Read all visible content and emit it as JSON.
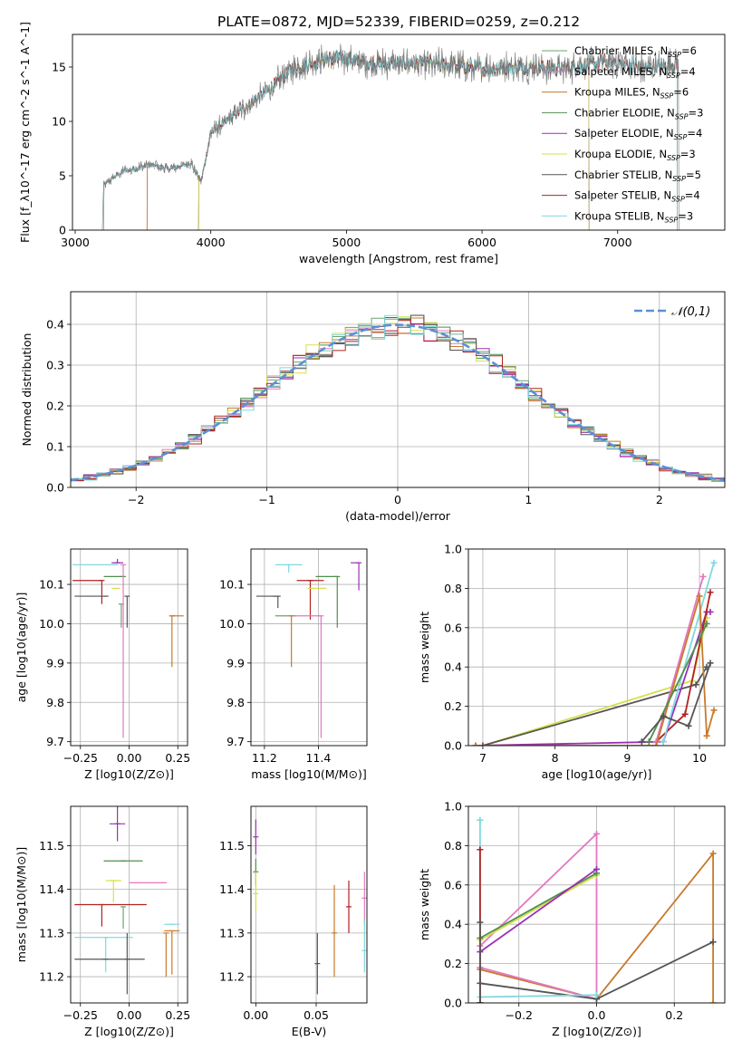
{
  "figure_title": "PLATE=0872, MJD=52339, FIBERID=0259, z=0.212",
  "colors": {
    "chabrier_miles": "#6aa56e",
    "salpeter_miles": "#e377c2",
    "kroupa_miles": "#c87a2a",
    "chabrier_elodie": "#4e8f4e",
    "salpeter_elodie": "#9b30b5",
    "kroupa_elodie": "#d6e04a",
    "chabrier_stelib": "#555555",
    "salpeter_stelib": "#b22222",
    "kroupa_stelib": "#7fd8e0",
    "gauss": "#5b8fd8",
    "grid": "#b0b0b0"
  },
  "chart_data": [
    {
      "type": "line",
      "id": "spectrum",
      "xlabel": "wavelength [Angstrom, rest frame]",
      "ylabel": "Flux [f_λ10^-17 erg cm^-2 s^-1 A^-1]",
      "xlim": [
        2980,
        7790
      ],
      "ylim": [
        0,
        18
      ],
      "xticks": [
        "3000",
        "4000",
        "5000",
        "6000",
        "7000"
      ],
      "yticks": [
        "0",
        "5",
        "10",
        "15"
      ],
      "grid": false,
      "legend_position": "top-right",
      "continuum": [
        [
          3200,
          0
        ],
        [
          3210,
          4.2
        ],
        [
          3350,
          5.4
        ],
        [
          3550,
          6.0
        ],
        [
          3700,
          5.6
        ],
        [
          3850,
          6.2
        ],
        [
          3930,
          4.5
        ],
        [
          4000,
          9.0
        ],
        [
          4200,
          10.8
        ],
        [
          4400,
          12.6
        ],
        [
          4600,
          14.8
        ],
        [
          4800,
          15.6
        ],
        [
          5000,
          15.8
        ],
        [
          5200,
          15.3
        ],
        [
          5500,
          15.4
        ],
        [
          5800,
          15.2
        ],
        [
          6000,
          14.8
        ],
        [
          6300,
          15.1
        ],
        [
          6600,
          14.8
        ],
        [
          6900,
          15.5
        ],
        [
          7200,
          15.0
        ],
        [
          7450,
          15.2
        ]
      ],
      "spectrum_note": "",
      "series": [
        {
          "name": "Chabrier MILES, N_SSP=6",
          "start": 3210,
          "end": 7440
        },
        {
          "name": "Salpeter MILES, N_SSP=4",
          "start": 3530,
          "end": 7440
        },
        {
          "name": "Kroupa MILES, N_SSP=6",
          "start": 3530,
          "end": 7440
        },
        {
          "name": "Chabrier ELODIE, N_SSP=3",
          "start": 3910,
          "end": 6790
        },
        {
          "name": "Salpeter ELODIE, N_SSP=4",
          "start": 3910,
          "end": 6790
        },
        {
          "name": "Kroupa ELODIE, N_SSP=3",
          "start": 3910,
          "end": 6790
        },
        {
          "name": "Chabrier STELIB, N_SSP=5",
          "start": 3210,
          "end": 7440
        },
        {
          "name": "Salpeter STELIB, N_SSP=4",
          "start": 3210,
          "end": 7440
        },
        {
          "name": "Kroupa STELIB, N_SSP=3",
          "start": 3210,
          "end": 7440
        }
      ]
    },
    {
      "type": "histogram",
      "id": "residuals",
      "xlabel": "(data-model)/error",
      "ylabel": "Normed distribution",
      "xlim": [
        -2.5,
        2.5
      ],
      "ylim": [
        0,
        0.48
      ],
      "xticks": [
        "−2",
        "−1",
        "0",
        "1",
        "2"
      ],
      "yticks": [
        "0.0",
        "0.1",
        "0.2",
        "0.3",
        "0.4"
      ],
      "grid": true,
      "legend_position": "top-right",
      "legend": "𝒩(0,1)",
      "bin_width": 0.1,
      "profile": "normal(0,1)"
    },
    {
      "type": "scatter",
      "id": "age_vs_Z",
      "xlabel": "Z [log10(Z/Z⊙)]",
      "ylabel": "age [log10(age/yr)]",
      "xlim": [
        -0.3,
        0.3
      ],
      "ylim": [
        9.69,
        10.19
      ],
      "xticks": [
        "−0.25",
        "0.00",
        "0.25"
      ],
      "yticks": [
        "9.7",
        "9.8",
        "9.9",
        "10.0",
        "10.1"
      ],
      "grid": true,
      "points": [
        {
          "c": "kroupa_stelib",
          "x": -0.07,
          "y": 10.15,
          "xe": [
            0.22,
            0.0
          ],
          "ye": [
            0.0,
            0.0
          ]
        },
        {
          "c": "salpeter_elodie",
          "x": -0.06,
          "y": 10.155,
          "xe": [
            0.03,
            0.03
          ],
          "ye": [
            0.0,
            0.01
          ]
        },
        {
          "c": "chabrier_elodie",
          "x": -0.03,
          "y": 10.12,
          "xe": [
            0.1,
            0.0
          ],
          "ye": [
            0.0,
            0.0
          ]
        },
        {
          "c": "salpeter_stelib",
          "x": -0.14,
          "y": 10.11,
          "xe": [
            0.15,
            0.0
          ],
          "ye": [
            0.06,
            0.0
          ]
        },
        {
          "c": "kroupa_elodie",
          "x": -0.06,
          "y": 10.09,
          "xe": [
            0.03,
            0.0
          ],
          "ye": [
            0.0,
            0.0
          ]
        },
        {
          "c": "chabrier_stelib",
          "x": -0.12,
          "y": 10.07,
          "xe": [
            0.16,
            0.0
          ],
          "ye": [
            0.0,
            0.0
          ]
        },
        {
          "c": "chabrier_miles",
          "x": -0.04,
          "y": 10.05,
          "xe": [
            0.0,
            0.0
          ],
          "ye": [
            0.06,
            0.0
          ]
        },
        {
          "c": "salpeter_miles",
          "x": 0.22,
          "y": 10.02,
          "xe": [
            0.0,
            0.0
          ],
          "ye": [
            0.0,
            0.0
          ]
        },
        {
          "c": "kroupa_miles",
          "x": 0.22,
          "y": 10.02,
          "xe": [
            0.0,
            0.06
          ],
          "ye": [
            0.13,
            0.0
          ]
        },
        {
          "c": "salpeter_miles",
          "x": -0.03,
          "y": 10.15,
          "xe": [
            0.0,
            0.0
          ],
          "ye": [
            0.44,
            0.0
          ]
        },
        {
          "c": "chabrier_stelib",
          "x": -0.01,
          "y": 10.07,
          "xe": [
            0.0,
            0.0
          ],
          "ye": [
            0.08,
            0.0
          ]
        }
      ]
    },
    {
      "type": "scatter",
      "id": "age_vs_mass",
      "xlabel": "mass [log10(M/M⊙)]",
      "ylabel": "",
      "xlim": [
        11.15,
        11.58
      ],
      "ylim": [
        9.69,
        10.19
      ],
      "xticks": [
        "11.2",
        "11.4"
      ],
      "yticks": [
        "9.7",
        "9.8",
        "9.9",
        "10.0",
        "10.1"
      ],
      "grid": true,
      "points": [
        {
          "c": "kroupa_stelib",
          "x": 11.29,
          "y": 10.15,
          "xe": [
            0.05,
            0.05
          ],
          "ye": [
            0.02,
            0.0
          ]
        },
        {
          "c": "salpeter_elodie",
          "x": 11.55,
          "y": 10.155,
          "xe": [
            0.03,
            0.0
          ],
          "ye": [
            0.07,
            0.0
          ]
        },
        {
          "c": "chabrier_elodie",
          "x": 11.47,
          "y": 10.12,
          "xe": [
            0.08,
            0.0
          ],
          "ye": [
            0.13,
            0.0
          ]
        },
        {
          "c": "salpeter_stelib",
          "x": 11.37,
          "y": 10.11,
          "xe": [
            0.05,
            0.05
          ],
          "ye": [
            0.1,
            0.0
          ]
        },
        {
          "c": "kroupa_elodie",
          "x": 11.42,
          "y": 10.09,
          "xe": [
            0.06,
            0.0
          ],
          "ye": [
            0.0,
            0.0
          ]
        },
        {
          "c": "chabrier_stelib",
          "x": 11.24,
          "y": 10.07,
          "xe": [
            0.07,
            0.0
          ],
          "ye": [
            0.0,
            0.0
          ]
        },
        {
          "c": "chabrier_miles",
          "x": 11.31,
          "y": 10.02,
          "xe": [
            0.07,
            0.0
          ],
          "ye": [
            0.0,
            0.0
          ]
        },
        {
          "c": "salpeter_miles",
          "x": 11.41,
          "y": 10.02,
          "xe": [
            0.1,
            0.0
          ],
          "ye": [
            0.31,
            0.0
          ]
        },
        {
          "c": "kroupa_miles",
          "x": 11.3,
          "y": 10.02,
          "xe": [
            0.0,
            0.0
          ],
          "ye": [
            0.13,
            0.0
          ]
        },
        {
          "c": "chabrier_stelib",
          "x": 11.25,
          "y": 10.07,
          "xe": [
            0.0,
            0.0
          ],
          "ye": [
            0.03,
            0.0
          ]
        }
      ]
    },
    {
      "type": "line",
      "id": "weight_vs_age",
      "xlabel": "age [log10(age/yr)]",
      "ylabel": "mass weight",
      "xlim": [
        6.8,
        10.35
      ],
      "ylim": [
        0,
        1
      ],
      "xticks": [
        "7",
        "8",
        "9",
        "10"
      ],
      "yticks": [
        "0.0",
        "0.2",
        "0.4",
        "0.6",
        "0.8",
        "1.0"
      ],
      "grid": true,
      "series": [
        {
          "c": "kroupa_elodie",
          "x": [
            7.0,
            9.9,
            10.1
          ],
          "y": [
            0.0,
            0.33,
            0.65
          ]
        },
        {
          "c": "chabrier_stelib",
          "x": [
            7.0,
            9.95,
            10.1
          ],
          "y": [
            0.0,
            0.31,
            0.4
          ]
        },
        {
          "c": "salpeter_elodie",
          "x": [
            6.9,
            9.5,
            10.1,
            10.15
          ],
          "y": [
            0.0,
            0.02,
            0.68,
            0.68
          ]
        },
        {
          "c": "salpeter_stelib",
          "x": [
            9.4,
            9.8,
            10.15
          ],
          "y": [
            0.02,
            0.16,
            0.78
          ]
        },
        {
          "c": "kroupa_stelib",
          "x": [
            9.5,
            10.2
          ],
          "y": [
            0.02,
            0.93
          ]
        },
        {
          "c": "salpeter_miles",
          "x": [
            9.4,
            10.05
          ],
          "y": [
            0.02,
            0.86
          ]
        },
        {
          "c": "kroupa_miles",
          "x": [
            6.9,
            9.4,
            10.0,
            10.1,
            10.2
          ],
          "y": [
            0.0,
            0.0,
            0.76,
            0.05,
            0.18
          ]
        },
        {
          "c": "chabrier_elodie",
          "x": [
            9.3,
            10.1
          ],
          "y": [
            0.02,
            0.62
          ]
        },
        {
          "c": "chabrier_stelib",
          "x": [
            9.2,
            9.5,
            9.85,
            10.15
          ],
          "y": [
            0.02,
            0.15,
            0.1,
            0.42
          ]
        }
      ]
    },
    {
      "type": "scatter",
      "id": "mass_vs_Z",
      "xlabel": "Z [log10(Z/Z⊙)]",
      "ylabel": "mass [log10(M/M⊙)]",
      "xlim": [
        -0.3,
        0.3
      ],
      "ylim": [
        11.14,
        11.59
      ],
      "xticks": [
        "−0.25",
        "0.00",
        "0.25"
      ],
      "yticks": [
        "11.2",
        "11.3",
        "11.4",
        "11.5"
      ],
      "grid": true,
      "points": [
        {
          "c": "salpeter_elodie",
          "x": -0.06,
          "y": 11.55,
          "xe": [
            0.04,
            0.04
          ],
          "ye": [
            0.04,
            0.04
          ]
        },
        {
          "c": "chabrier_elodie",
          "x": -0.03,
          "y": 11.465,
          "xe": [
            0.1,
            0.1
          ],
          "ye": [
            0.0,
            0.0
          ]
        },
        {
          "c": "kroupa_elodie",
          "x": -0.08,
          "y": 11.42,
          "xe": [
            0.04,
            0.04
          ],
          "ye": [
            0.05,
            0.0
          ]
        },
        {
          "c": "salpeter_miles",
          "x": 0.18,
          "y": 11.415,
          "xe": [
            0.18,
            0.0
          ],
          "ye": [
            0.0,
            0.0
          ]
        },
        {
          "c": "salpeter_stelib",
          "x": -0.14,
          "y": 11.365,
          "xe": [
            0.14,
            0.23
          ],
          "ye": [
            0.05,
            0.0
          ]
        },
        {
          "c": "chabrier_miles",
          "x": -0.03,
          "y": 11.36,
          "xe": [
            0.0,
            0.0
          ],
          "ye": [
            0.05,
            0.0
          ]
        },
        {
          "c": "kroupa_stelib",
          "x": -0.12,
          "y": 11.29,
          "xe": [
            0.16,
            0.14
          ],
          "ye": [
            0.08,
            0.0
          ]
        },
        {
          "c": "kroupa_miles",
          "x": 0.22,
          "y": 11.305,
          "xe": [
            0.04,
            0.04
          ],
          "ye": [
            0.1,
            0.0
          ]
        },
        {
          "c": "kroupa_stelib",
          "x": 0.22,
          "y": 11.32,
          "xe": [
            0.04,
            0.04
          ],
          "ye": [
            0.0,
            0.0
          ]
        },
        {
          "c": "chabrier_stelib",
          "x": -0.12,
          "y": 11.24,
          "xe": [
            0.16,
            0.2
          ],
          "ye": [
            0.0,
            0.0
          ]
        },
        {
          "c": "chabrier_stelib",
          "x": -0.01,
          "y": 11.24,
          "xe": [
            0.0,
            0.0
          ],
          "ye": [
            0.08,
            0.06
          ]
        },
        {
          "c": "kroupa_miles",
          "x": 0.19,
          "y": 11.3,
          "xe": [
            0.0,
            0.0
          ],
          "ye": [
            0.1,
            0.0
          ]
        }
      ]
    },
    {
      "type": "scatter",
      "id": "mass_vs_ebv",
      "xlabel": "E(B-V)",
      "ylabel": "",
      "xlim": [
        -0.004,
        0.092
      ],
      "ylim": [
        11.14,
        11.59
      ],
      "xticks": [
        "0.00",
        "0.05"
      ],
      "yticks": [
        "11.2",
        "11.3",
        "11.4",
        "11.5"
      ],
      "grid": true,
      "points": [
        {
          "c": "salpeter_elodie",
          "x": 0.0,
          "y": 11.52,
          "xe": [
            0,
            0
          ],
          "ye": [
            0.04,
            0.04
          ]
        },
        {
          "c": "chabrier_elodie",
          "x": 0.0,
          "y": 11.44,
          "xe": [
            0,
            0
          ],
          "ye": [
            0.03,
            0.03
          ]
        },
        {
          "c": "kroupa_elodie",
          "x": 0.0,
          "y": 11.39,
          "xe": [
            0,
            0
          ],
          "ye": [
            0.04,
            0.05
          ]
        },
        {
          "c": "chabrier_stelib",
          "x": 0.051,
          "y": 11.23,
          "xe": [
            0,
            0
          ],
          "ye": [
            0.07,
            0.07
          ]
        },
        {
          "c": "kroupa_miles",
          "x": 0.065,
          "y": 11.3,
          "xe": [
            0,
            0
          ],
          "ye": [
            0.1,
            0.11
          ]
        },
        {
          "c": "salpeter_stelib",
          "x": 0.077,
          "y": 11.36,
          "xe": [
            0,
            0
          ],
          "ye": [
            0.06,
            0.06
          ]
        },
        {
          "c": "salpeter_miles",
          "x": 0.09,
          "y": 11.38,
          "xe": [
            0,
            0
          ],
          "ye": [
            0.06,
            0.06
          ]
        },
        {
          "c": "kroupa_stelib",
          "x": 0.09,
          "y": 11.26,
          "xe": [
            0,
            0
          ],
          "ye": [
            0.05,
            0.07
          ]
        }
      ]
    },
    {
      "type": "line",
      "id": "weight_vs_Z",
      "xlabel": "Z [log10(Z/Z⊙)]",
      "ylabel": "mass weight",
      "xlim": [
        -0.33,
        0.33
      ],
      "ylim": [
        0,
        1
      ],
      "xticks": [
        "−0.2",
        "0.0",
        "0.2"
      ],
      "yticks": [
        "0.0",
        "0.2",
        "0.4",
        "0.6",
        "0.8",
        "1.0"
      ],
      "grid": true,
      "series": [
        {
          "c": "salpeter_miles",
          "x": [
            -0.3,
            0.0,
            0.0
          ],
          "y": [
            0.29,
            0.86,
            0.02
          ]
        },
        {
          "c": "kroupa_elodie",
          "x": [
            -0.3,
            0.0
          ],
          "y": [
            0.32,
            0.65
          ]
        },
        {
          "c": "chabrier_elodie",
          "x": [
            -0.3,
            0.0
          ],
          "y": [
            0.33,
            0.66
          ]
        },
        {
          "c": "salpeter_elodie",
          "x": [
            -0.3,
            0.0
          ],
          "y": [
            0.26,
            0.68
          ]
        },
        {
          "c": "kroupa_miles",
          "x": [
            -0.3,
            0.0,
            0.3,
            0.3
          ],
          "y": [
            0.17,
            0.02,
            0.76,
            0.0
          ]
        },
        {
          "c": "salpeter_miles",
          "x": [
            -0.3,
            0.0
          ],
          "y": [
            0.18,
            0.02
          ]
        },
        {
          "c": "chabrier_stelib",
          "x": [
            -0.3,
            0.0,
            0.3
          ],
          "y": [
            0.1,
            0.02,
            0.31
          ]
        },
        {
          "c": "kroupa_stelib",
          "x": [
            -0.3,
            0.0
          ],
          "y": [
            0.03,
            0.04
          ]
        },
        {
          "c": "kroupa_stelib",
          "x": [
            -0.3,
            -0.3
          ],
          "y": [
            0.0,
            0.93
          ]
        },
        {
          "c": "salpeter_stelib",
          "x": [
            -0.3,
            -0.3
          ],
          "y": [
            0.0,
            0.78
          ]
        },
        {
          "c": "chabrier_stelib",
          "x": [
            -0.3,
            -0.3
          ],
          "y": [
            0.0,
            0.41
          ]
        }
      ]
    }
  ]
}
